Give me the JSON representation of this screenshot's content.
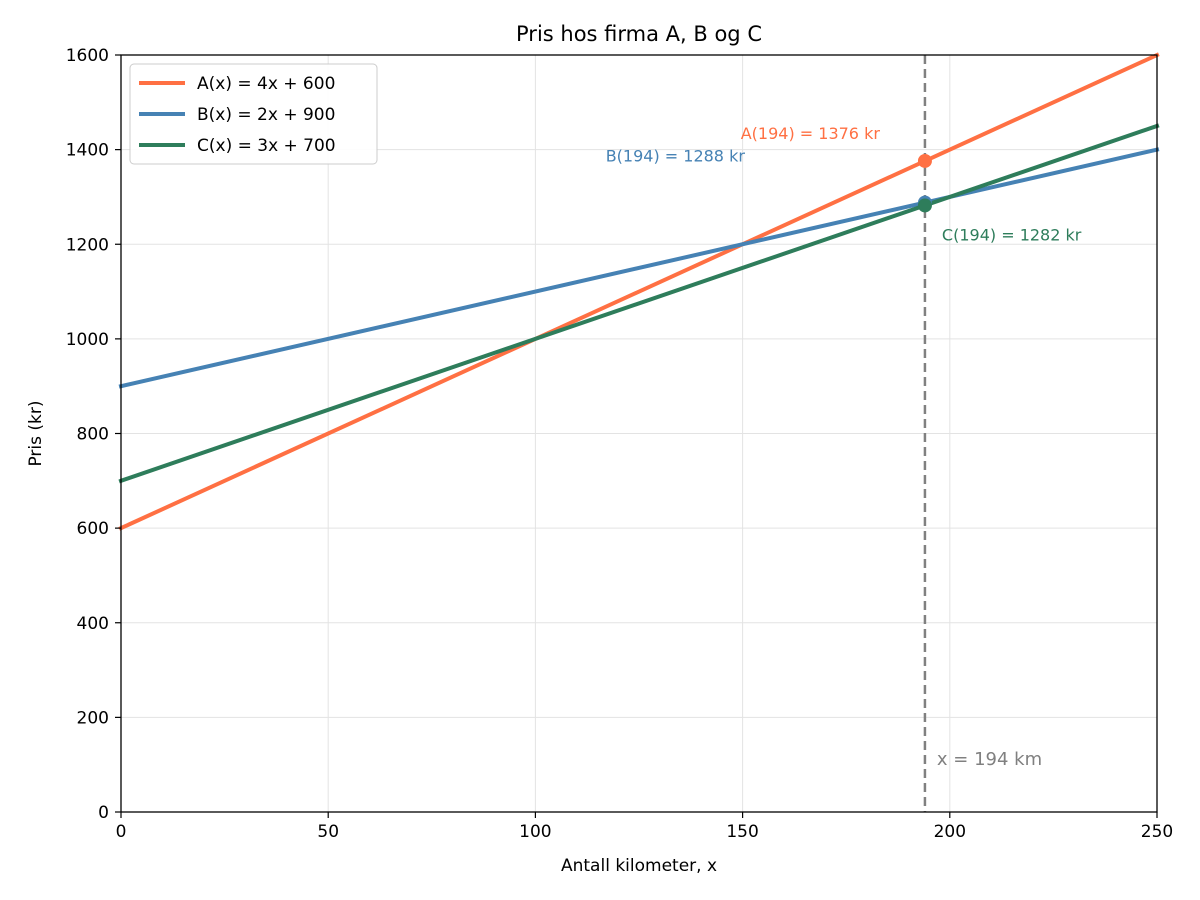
{
  "chart_data": {
    "type": "line",
    "title": "Pris hos firma A, B og C",
    "xlabel": "Antall kilometer, x",
    "ylabel": "Pris (kr)",
    "xlim": [
      0,
      250
    ],
    "ylim": [
      0,
      1600
    ],
    "x_ticks": [
      0,
      50,
      100,
      150,
      200,
      250
    ],
    "y_ticks": [
      0,
      200,
      400,
      600,
      800,
      1000,
      1200,
      1400,
      1600
    ],
    "grid": true,
    "legend_position": "top-left",
    "x": [
      0,
      250
    ],
    "series": [
      {
        "name": "A(x) = 4x + 600",
        "color": "#ff7043",
        "values": [
          600,
          1600
        ]
      },
      {
        "name": "B(x) = 2x + 900",
        "color": "#4682b4",
        "values": [
          900,
          1400
        ]
      },
      {
        "name": "C(x) = 3x + 700",
        "color": "#2e7d5b",
        "values": [
          700,
          1450
        ]
      }
    ],
    "highlight_x": 194,
    "highlight_label": "x = 194 km",
    "highlight_color": "#808080",
    "points": [
      {
        "x": 194,
        "y": 1376,
        "label": "A(194) = 1376 kr",
        "color": "#ff7043"
      },
      {
        "x": 194,
        "y": 1288,
        "label": "B(194) = 1288 kr",
        "color": "#4682b4"
      },
      {
        "x": 194,
        "y": 1282,
        "label": "C(194) = 1282 kr",
        "color": "#2e7d5b"
      }
    ]
  }
}
